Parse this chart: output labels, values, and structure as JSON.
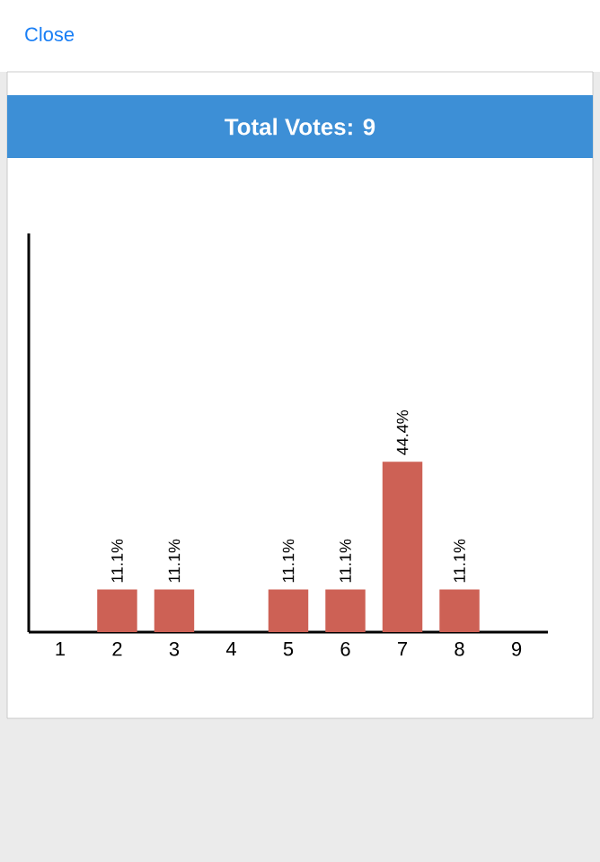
{
  "chart_data": {
    "type": "bar",
    "title": "Total Votes: 9",
    "annotations": [
      "Close"
    ],
    "categories": [
      "1",
      "2",
      "3",
      "4",
      "5",
      "6",
      "7",
      "8",
      "9"
    ],
    "values": [
      0,
      11.1,
      11.1,
      0,
      11.1,
      11.1,
      44.4,
      11.1,
      0
    ],
    "value_labels": [
      null,
      "11.1%",
      "11.1%",
      null,
      "11.1%",
      "11.1%",
      "44.4%",
      "11.1%",
      null
    ],
    "color": "#cd6155"
  }
}
